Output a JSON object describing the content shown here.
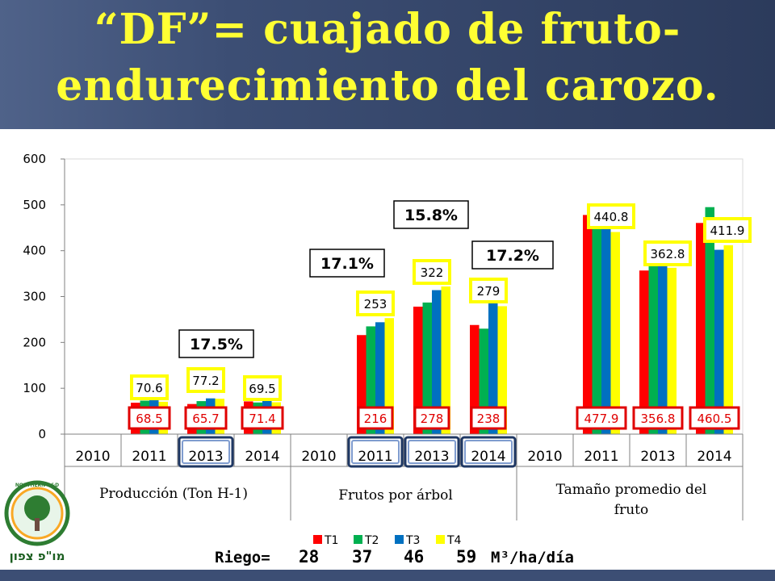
{
  "slide": {
    "title_line1": "“DF”= cuajado de fruto-",
    "title_line2": "endurecimiento del carozo.",
    "logo_text": "מו\"פ צפון",
    "logo_ring_text": "NORTHERN R&D"
  },
  "colors": {
    "T1": "#ff0000",
    "T2": "#00b050",
    "T3": "#0070c0",
    "T4": "#ffff00",
    "header": "#3c4e74",
    "title": "#ffff33"
  },
  "chart_data": {
    "type": "bar",
    "ylim": [
      0,
      600
    ],
    "yticks": [
      "0",
      "100",
      "200",
      "300",
      "400",
      "500",
      "600"
    ],
    "groups": [
      "Producción (Ton H-1)",
      "Frutos por árbol",
      "Tamaño promedio del fruto"
    ],
    "categories": [
      "2010",
      "2011",
      "2013",
      "2014",
      "2010",
      "2011",
      "2013",
      "2014",
      "2010",
      "2011",
      "2013",
      "2014"
    ],
    "series": [
      {
        "name": "T1",
        "values": [
          null,
          68.5,
          65.7,
          71.4,
          null,
          216,
          278,
          238,
          null,
          477.9,
          356.8,
          460.5
        ]
      },
      {
        "name": "T2",
        "values": [
          null,
          73,
          72,
          69,
          null,
          235,
          287,
          230,
          null,
          465,
          372,
          495
        ]
      },
      {
        "name": "T3",
        "values": [
          null,
          75,
          78,
          74,
          null,
          244,
          314,
          290,
          null,
          450,
          375,
          402
        ]
      },
      {
        "name": "T4",
        "values": [
          null,
          70.6,
          77.2,
          69.5,
          null,
          253,
          322,
          279,
          null,
          440.8,
          362.8,
          411.9
        ]
      }
    ],
    "labels_T1": [
      {
        "cat": 1,
        "text": "68.5"
      },
      {
        "cat": 2,
        "text": "65.7"
      },
      {
        "cat": 3,
        "text": "71.4"
      },
      {
        "cat": 5,
        "text": "216"
      },
      {
        "cat": 6,
        "text": "278"
      },
      {
        "cat": 7,
        "text": "238"
      },
      {
        "cat": 9,
        "text": "477.9"
      },
      {
        "cat": 10,
        "text": "356.8"
      },
      {
        "cat": 11,
        "text": "460.5"
      }
    ],
    "labels_T4": [
      {
        "cat": 1,
        "text": "70.6"
      },
      {
        "cat": 2,
        "text": "77.2"
      },
      {
        "cat": 3,
        "text": "69.5"
      },
      {
        "cat": 5,
        "text": "253"
      },
      {
        "cat": 6,
        "text": "322"
      },
      {
        "cat": 7,
        "text": "279"
      },
      {
        "cat": 9,
        "text": "440.8"
      },
      {
        "cat": 10,
        "text": "362.8"
      },
      {
        "cat": 11,
        "text": "411.9"
      }
    ],
    "percent_labels": [
      "17.5%",
      "17.1%",
      "15.8%",
      "17.2%"
    ],
    "highlighted_categories": [
      2,
      5,
      6,
      7
    ],
    "legend": [
      "T1",
      "T2",
      "T3",
      "T4"
    ],
    "riego": {
      "label": "Riego=",
      "values": [
        "28",
        "37",
        "46",
        "59"
      ],
      "unit": "M³/ha/día"
    }
  }
}
